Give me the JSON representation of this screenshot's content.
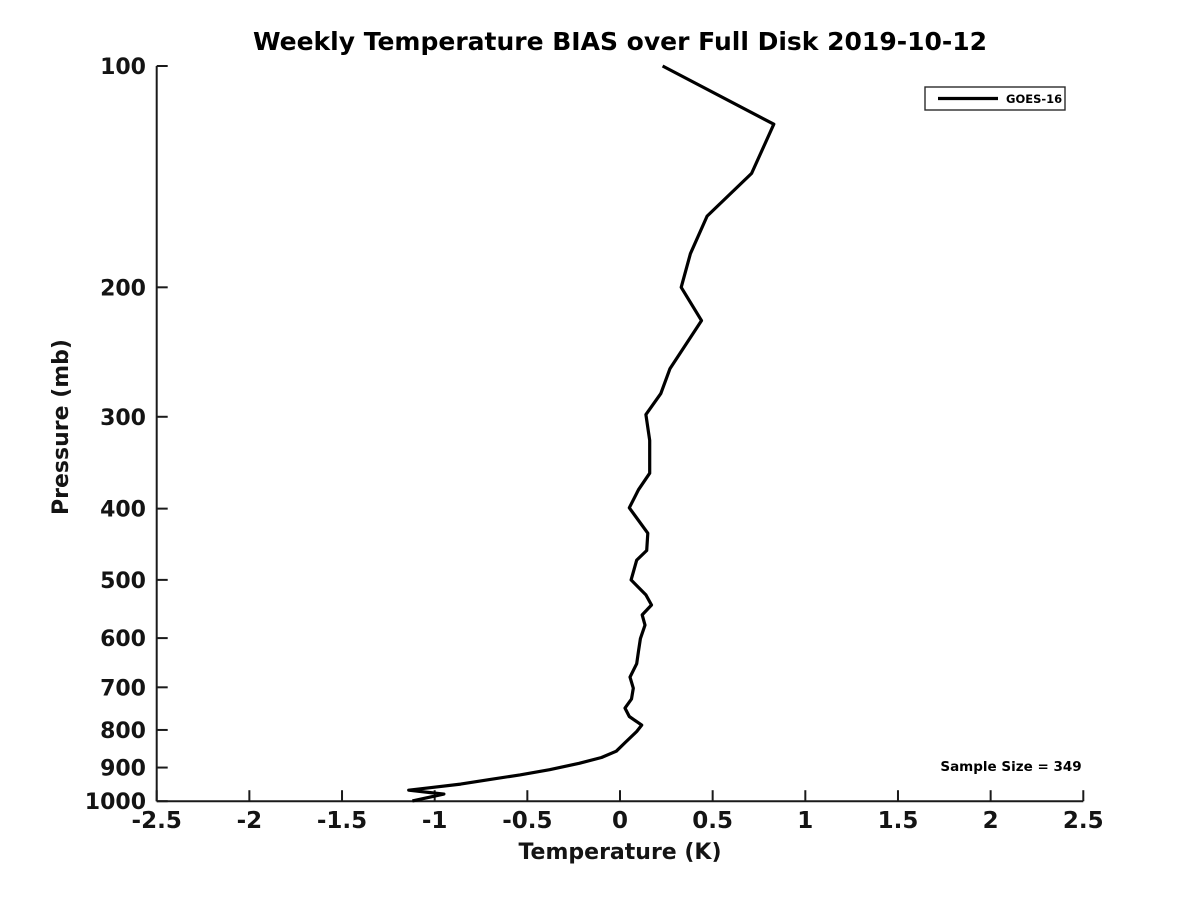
{
  "chart_data": {
    "type": "line",
    "title": "Weekly Temperature BIAS over Full Disk 2019-10-12",
    "xlabel": "Temperature (K)",
    "ylabel": "Pressure (mb)",
    "xlim": [
      -2.5,
      2.5
    ],
    "ylim": [
      100,
      1000
    ],
    "yscale": "log",
    "y_direction": "inverted",
    "grid": false,
    "x_ticks": [
      -2.5,
      -2,
      -1.5,
      -1,
      -0.5,
      0,
      0.5,
      1,
      1.5,
      2,
      2.5
    ],
    "x_tick_labels": [
      "-2.5",
      "-2",
      "-1.5",
      "-1",
      "-0.5",
      "0",
      "0.5",
      "1",
      "1.5",
      "2",
      "2.5"
    ],
    "y_ticks": [
      100,
      200,
      300,
      400,
      500,
      600,
      700,
      800,
      900,
      1000
    ],
    "line_color": "#000000",
    "legend": {
      "position": "top-right",
      "entries": [
        {
          "label": "GOES-16",
          "color": "#000000"
        }
      ]
    },
    "annotation": "Sample Size = 349",
    "series": [
      {
        "name": "GOES-16",
        "x_name": "temperature_bias_K",
        "y_name": "pressure_mb",
        "points": [
          [
            0.23,
            100
          ],
          [
            0.83,
            120
          ],
          [
            0.71,
            140
          ],
          [
            0.47,
            160
          ],
          [
            0.38,
            180
          ],
          [
            0.33,
            200
          ],
          [
            0.44,
            222
          ],
          [
            0.27,
            258
          ],
          [
            0.22,
            279
          ],
          [
            0.14,
            298
          ],
          [
            0.16,
            323
          ],
          [
            0.16,
            358
          ],
          [
            0.1,
            377
          ],
          [
            0.05,
            399
          ],
          [
            0.15,
            432
          ],
          [
            0.144,
            456
          ],
          [
            0.09,
            470
          ],
          [
            0.06,
            500
          ],
          [
            0.14,
            524
          ],
          [
            0.17,
            541
          ],
          [
            0.12,
            558
          ],
          [
            0.135,
            576
          ],
          [
            0.11,
            601
          ],
          [
            0.1,
            625
          ],
          [
            0.09,
            650
          ],
          [
            0.054,
            678
          ],
          [
            0.072,
            702
          ],
          [
            0.062,
            726
          ],
          [
            0.027,
            747
          ],
          [
            0.05,
            767
          ],
          [
            0.117,
            788
          ],
          [
            0.09,
            804
          ],
          [
            0.03,
            831
          ],
          [
            -0.02,
            855
          ],
          [
            -0.1,
            872
          ],
          [
            -0.22,
            888
          ],
          [
            -0.38,
            906
          ],
          [
            -0.54,
            921
          ],
          [
            -0.7,
            934
          ],
          [
            -0.86,
            948
          ],
          [
            -1.03,
            959
          ],
          [
            -1.14,
            966
          ],
          [
            -0.95,
            978
          ],
          [
            -1.12,
            999
          ]
        ]
      }
    ]
  }
}
